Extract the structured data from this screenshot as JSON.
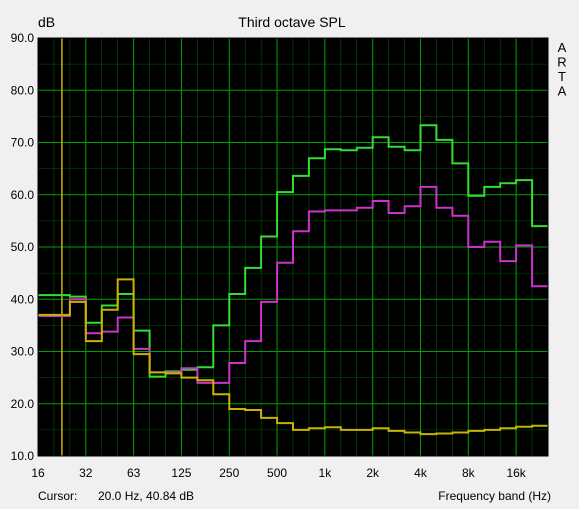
{
  "chart_data": {
    "type": "line",
    "title": "Third octave SPL",
    "ylabel": "dB",
    "xlabel": "Frequency band (Hz)",
    "brand": [
      "A",
      "R",
      "T",
      "A"
    ],
    "ylim": [
      10,
      90
    ],
    "y_ticks": [
      "10.0",
      "20.0",
      "30.0",
      "40.0",
      "50.0",
      "60.0",
      "70.0",
      "80.0",
      "90.0"
    ],
    "x_tick_labels": [
      "16",
      "32",
      "63",
      "125",
      "250",
      "500",
      "1k",
      "2k",
      "4k",
      "8k",
      "16k"
    ],
    "bands": [
      "16",
      "20",
      "25",
      "31.5",
      "40",
      "50",
      "63",
      "80",
      "100",
      "125",
      "160",
      "200",
      "250",
      "315",
      "400",
      "500",
      "630",
      "800",
      "1k",
      "1.25k",
      "1.6k",
      "2k",
      "2.5k",
      "3.15k",
      "4k",
      "5k",
      "6.3k",
      "8k",
      "10k",
      "12.5k",
      "16k",
      "20k"
    ],
    "grid": true,
    "background": "#000000",
    "grid_color": "#00a000",
    "cursor_marker": {
      "band": "20",
      "color": "#c8b400"
    },
    "series": [
      {
        "color": "#33dd33",
        "values": [
          40.8,
          40.8,
          40.5,
          35.5,
          38.8,
          41.0,
          34.0,
          25.2,
          26.2,
          26.5,
          27.0,
          35.0,
          41.0,
          46.0,
          52.0,
          60.5,
          63.6,
          67.0,
          68.7,
          68.5,
          69.0,
          71.0,
          69.2,
          68.5,
          73.3,
          70.5,
          66.0,
          59.8,
          61.5,
          62.2,
          62.8,
          54.0
        ]
      },
      {
        "color": "#cc33cc",
        "values": [
          36.8,
          36.8,
          40.0,
          33.5,
          33.8,
          36.5,
          30.5,
          26.0,
          26.0,
          26.8,
          24.0,
          24.0,
          27.8,
          32.0,
          39.5,
          47.0,
          53.0,
          56.8,
          57.0,
          57.0,
          57.5,
          58.8,
          56.5,
          57.8,
          61.5,
          57.5,
          56.0,
          50.0,
          51.0,
          47.3,
          50.3,
          42.5
        ]
      },
      {
        "color": "#c8b400",
        "values": [
          37.0,
          37.0,
          39.5,
          32.0,
          38.0,
          43.8,
          29.5,
          26.0,
          25.8,
          25.0,
          24.5,
          21.8,
          19.0,
          18.8,
          17.3,
          16.3,
          15.0,
          15.3,
          15.5,
          15.0,
          15.0,
          15.3,
          14.8,
          14.5,
          14.2,
          14.3,
          14.5,
          14.8,
          15.0,
          15.3,
          15.6,
          15.8
        ]
      }
    ]
  },
  "status": {
    "cursor_label": "Cursor:",
    "cursor_value": "20.0 Hz, 40.84 dB"
  }
}
